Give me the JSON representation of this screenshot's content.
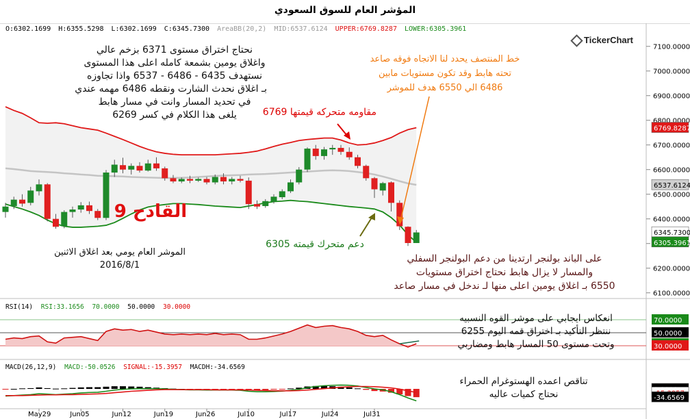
{
  "title": "المؤشر العام للسوق السعودي",
  "info": {
    "open": "O:6302.1699",
    "high": "H:6355.5298",
    "low": "L:6302.1699",
    "close": "C:6345.7300",
    "area": "AreaBB(20,2)",
    "mid": "MID:6537.6124",
    "upper": "UPPER:6769.8287",
    "lower": "LOWER:6305.3961"
  },
  "logo": "TickerChart",
  "annotations": {
    "top_left": [
      "نحتاج اختراق مستوى 6371 بزخم عالي",
      "واغلاق يومين بشمعة كامله اعلى هذا المستوى",
      "نستهدف 6435 - 6486 - 6537 واذا تجاوزه",
      "بـ اغلاق نحدث الشارت ونقطه 6486 مهمه عندي",
      "في تحديد المسار وانت في مسار هابط",
      "يلغى هذا الكلام في كسر 6269"
    ],
    "top_right": [
      "خط المنتصف يحدد لنا الاتجاه فوقه صاعد",
      "تحته هابط وقد تكون مستويات مابين",
      "6486 الي 6550 هدف للموشر"
    ],
    "resistance": "مقاومه متحركه قيمتها 6769",
    "support": "دعم متحرك قيمته 6305",
    "big": "القادح 9",
    "date_note": [
      "الموشر العام يومي بعد اغلاق الاثنين",
      "2016/8/1"
    ],
    "bottom_right": [
      "على الباند بولنجر ارتدينا من دعم البولنجر السفلي",
      "والمسار لا يزال هابط نحتاج اختراق مستويات",
      "6550 بـ اغلاق يومين اعلى منها لـ ندخل في مسار صاعد"
    ],
    "rsi_note": [
      "انعكاس ايجابي على موشر القوه النسبيه",
      "ننتظر التأكيد بـ اختراق قمه اليوم 6255",
      "وتحت مستوى 50 المسار هابط ومضاربي"
    ],
    "macd_note": [
      "تناقص اعمده الهستوغرام الحمراء",
      "نحتاج كميات عاليه"
    ]
  },
  "rsi_label": {
    "name": "RSI(14)",
    "value": "RSI:33.1656",
    "l1": "70.0000",
    "l2": "50.0000",
    "l3": "30.0000"
  },
  "macd_label": {
    "name": "MACD(26,12,9)",
    "macd": "MACD:-50.0526",
    "signal": "SIGNAL:-15.3957",
    "hist": "MACDH:-34.6569"
  },
  "colors": {
    "up": "#1e8a2a",
    "down": "#e02020",
    "upper_band": "#e01818",
    "lower_band": "#1a8a1a",
    "mid_band": "#c4c4c4",
    "band_fill": "#f2f2f2",
    "rsi_line": "#d01010",
    "rsi_fill": "#f4c8c8",
    "orange": "#f07a10"
  },
  "chart_data": {
    "type": "candlestick",
    "price_axis": {
      "ticks": [
        7100,
        7000,
        6900,
        6800,
        6700,
        6600,
        6500,
        6400,
        6300,
        6200,
        6100
      ],
      "tick_labels": [
        "7100.0000",
        "7000.0000",
        "6900.0000",
        "6800.0000",
        "6700.0000",
        "6600.0000",
        "6500.0000",
        "6400.0000",
        "6300.0000",
        "6200.0000",
        "6100.0000"
      ],
      "badges": [
        {
          "value": 6769.8287,
          "label": "6769.8287",
          "color": "#e01818"
        },
        {
          "value": 6537.6124,
          "label": "6537.6124",
          "color": "#cfcfcf"
        },
        {
          "value": 6345.73,
          "label": "6345.7300",
          "color": "#ffffff"
        },
        {
          "value": 6305.3961,
          "label": "6305.3961",
          "color": "#1a8a1a"
        }
      ]
    },
    "x_axis": {
      "labels": [
        "May29",
        "Jun05",
        "Jun12",
        "Jun19",
        "Jun26",
        "Jul10",
        "Jul17",
        "Jul24",
        "Jul31"
      ],
      "label_index": [
        4,
        9,
        14,
        19,
        24,
        29,
        34,
        39,
        44
      ]
    },
    "candles": [
      [
        6428,
        6465,
        6405,
        6450
      ],
      [
        6452,
        6490,
        6440,
        6478
      ],
      [
        6478,
        6500,
        6450,
        6462
      ],
      [
        6465,
        6530,
        6455,
        6515
      ],
      [
        6512,
        6560,
        6495,
        6540
      ],
      [
        6540,
        6545,
        6390,
        6400
      ],
      [
        6400,
        6420,
        6360,
        6368
      ],
      [
        6370,
        6435,
        6362,
        6428
      ],
      [
        6428,
        6450,
        6405,
        6438
      ],
      [
        6438,
        6468,
        6425,
        6455
      ],
      [
        6455,
        6470,
        6420,
        6432
      ],
      [
        6432,
        6440,
        6395,
        6404
      ],
      [
        6404,
        6598,
        6395,
        6588
      ],
      [
        6588,
        6640,
        6570,
        6620
      ],
      [
        6618,
        6648,
        6585,
        6600
      ],
      [
        6600,
        6625,
        6580,
        6615
      ],
      [
        6615,
        6630,
        6588,
        6596
      ],
      [
        6596,
        6640,
        6592,
        6625
      ],
      [
        6625,
        6650,
        6595,
        6605
      ],
      [
        6605,
        6612,
        6555,
        6565
      ],
      [
        6565,
        6578,
        6545,
        6552
      ],
      [
        6552,
        6568,
        6545,
        6562
      ],
      [
        6562,
        6575,
        6545,
        6555
      ],
      [
        6555,
        6568,
        6550,
        6562
      ],
      [
        6562,
        6570,
        6540,
        6548
      ],
      [
        6548,
        6580,
        6540,
        6570
      ],
      [
        6570,
        6585,
        6540,
        6552
      ],
      [
        6552,
        6570,
        6540,
        6562
      ],
      [
        6562,
        6575,
        6548,
        6555
      ],
      [
        6555,
        6568,
        6440,
        6460
      ],
      [
        6460,
        6475,
        6440,
        6450
      ],
      [
        6452,
        6480,
        6445,
        6472
      ],
      [
        6470,
        6500,
        6462,
        6490
      ],
      [
        6488,
        6520,
        6480,
        6512
      ],
      [
        6512,
        6560,
        6505,
        6548
      ],
      [
        6548,
        6610,
        6540,
        6600
      ],
      [
        6600,
        6690,
        6590,
        6685
      ],
      [
        6685,
        6700,
        6640,
        6655
      ],
      [
        6655,
        6692,
        6640,
        6682
      ],
      [
        6682,
        6700,
        6660,
        6688
      ],
      [
        6688,
        6700,
        6660,
        6672
      ],
      [
        6672,
        6690,
        6640,
        6650
      ],
      [
        6650,
        6660,
        6605,
        6615
      ],
      [
        6615,
        6620,
        6555,
        6565
      ],
      [
        6565,
        6570,
        6485,
        6520
      ],
      [
        6515,
        6550,
        6495,
        6545
      ],
      [
        6548,
        6552,
        6430,
        6465
      ],
      [
        6465,
        6475,
        6355,
        6370
      ],
      [
        6368,
        6370,
        6290,
        6302
      ],
      [
        6302,
        6355,
        6302,
        6345
      ]
    ],
    "upper_band": [
      6855,
      6840,
      6828,
      6810,
      6790,
      6788,
      6790,
      6786,
      6778,
      6770,
      6765,
      6760,
      6748,
      6735,
      6722,
      6708,
      6694,
      6682,
      6672,
      6666,
      6662,
      6660,
      6660,
      6660,
      6660,
      6660,
      6662,
      6664,
      6666,
      6670,
      6675,
      6684,
      6694,
      6703,
      6710,
      6718,
      6722,
      6725,
      6728,
      6728,
      6720,
      6708,
      6700,
      6702,
      6708,
      6718,
      6730,
      6748,
      6762,
      6770
    ],
    "mid_band": [
      6605,
      6602,
      6598,
      6594,
      6592,
      6590,
      6588,
      6585,
      6583,
      6580,
      6578,
      6575,
      6574,
      6573,
      6572,
      6570,
      6569,
      6568,
      6567,
      6566,
      6566,
      6567,
      6568,
      6570,
      6572,
      6574,
      6576,
      6577,
      6578,
      6580,
      6581,
      6582,
      6584,
      6586,
      6588,
      6590,
      6592,
      6594,
      6596,
      6597,
      6596,
      6594,
      6590,
      6586,
      6580,
      6572,
      6563,
      6553,
      6544,
      6538
    ],
    "lower_band": [
      6460,
      6450,
      6440,
      6428,
      6414,
      6395,
      6380,
      6370,
      6366,
      6366,
      6368,
      6370,
      6374,
      6385,
      6402,
      6420,
      6436,
      6448,
      6454,
      6458,
      6462,
      6462,
      6460,
      6458,
      6455,
      6452,
      6450,
      6448,
      6446,
      6452,
      6458,
      6465,
      6470,
      6472,
      6475,
      6472,
      6470,
      6466,
      6462,
      6458,
      6454,
      6450,
      6447,
      6444,
      6440,
      6428,
      6405,
      6375,
      6335,
      6305
    ],
    "rsi": {
      "levels": [
        70,
        50,
        30
      ],
      "values": [
        40,
        42,
        41,
        44,
        45,
        36,
        34,
        42,
        43,
        44,
        41,
        38,
        52,
        56,
        54,
        55,
        52,
        54,
        51,
        48,
        47,
        48,
        47,
        48,
        47,
        49,
        47,
        48,
        47,
        40,
        40,
        42,
        45,
        48,
        52,
        57,
        62,
        58,
        60,
        61,
        58,
        56,
        52,
        46,
        44,
        46,
        39,
        33,
        28,
        33.17
      ]
    },
    "macd": {
      "macd_line": [
        -30,
        -28,
        -26,
        -24,
        -20,
        -22,
        -24,
        -22,
        -20,
        -17,
        -15,
        -14,
        -10,
        -5,
        -2,
        0,
        1,
        1,
        1,
        0,
        -2,
        -3,
        -4,
        -4,
        -5,
        -5,
        -5,
        -5,
        -6,
        -10,
        -12,
        -12,
        -11,
        -9,
        -6,
        -2,
        5,
        10,
        13,
        15,
        16,
        15,
        12,
        6,
        0,
        -4,
        -12,
        -24,
        -38,
        -50.05
      ],
      "signal_line": [
        -28,
        -28,
        -28,
        -27,
        -26,
        -25,
        -25,
        -24,
        -24,
        -23,
        -22,
        -21,
        -19,
        -16,
        -13,
        -10,
        -8,
        -6,
        -4,
        -3,
        -3,
        -3,
        -3,
        -3,
        -3,
        -4,
        -4,
        -4,
        -4,
        -5,
        -6,
        -7,
        -8,
        -8,
        -8,
        -7,
        -5,
        -2,
        1,
        4,
        7,
        9,
        10,
        10,
        9,
        7,
        4,
        -1,
        -8,
        -15.4
      ],
      "histogram": [
        -2,
        0,
        2,
        3,
        6,
        3,
        1,
        2,
        4,
        6,
        7,
        7,
        9,
        11,
        11,
        10,
        9,
        7,
        5,
        3,
        1,
        0,
        -1,
        -1,
        -2,
        -1,
        -1,
        -1,
        -2,
        -5,
        -6,
        -5,
        -3,
        -1,
        2,
        5,
        10,
        12,
        12,
        11,
        9,
        6,
        2,
        -4,
        -9,
        -11,
        -16,
        -23,
        -30,
        -34.66
      ]
    }
  }
}
